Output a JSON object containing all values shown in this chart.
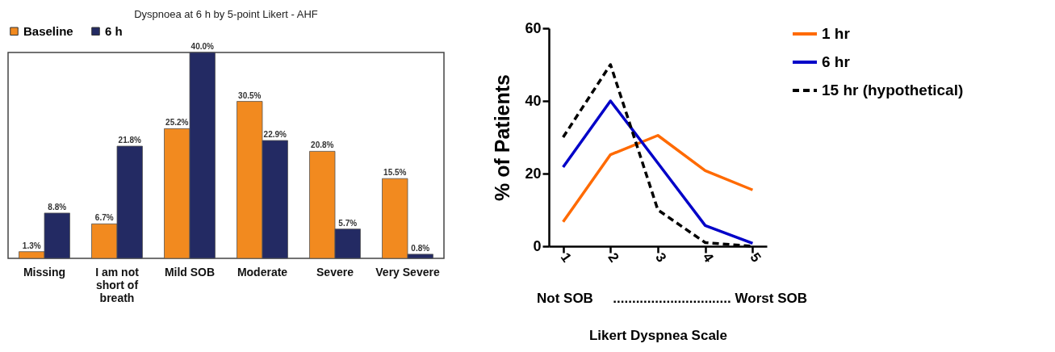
{
  "chart_data": [
    {
      "type": "bar",
      "title": "Dyspnoea at 6 h by 5-point Likert - AHF",
      "categories": [
        "Missing",
        "I am not short of breath",
        "Mild SOB",
        "Moderate",
        "Severe",
        "Very Severe"
      ],
      "series": [
        {
          "name": "Baseline",
          "color": "#f28a1f",
          "values": [
            1.3,
            6.7,
            25.2,
            30.5,
            20.8,
            15.5
          ],
          "value_labels": [
            "1.3%",
            "6.7%",
            "25.2%",
            "30.5%",
            "20.8%",
            "15.5%"
          ]
        },
        {
          "name": "6 h",
          "color": "#232a63",
          "values": [
            8.8,
            21.8,
            40.0,
            22.9,
            5.7,
            0.8
          ],
          "value_labels": [
            "8.8%",
            "21.8%",
            "40.0%",
            "22.9%",
            "5.7%",
            "0.8%"
          ]
        }
      ],
      "legend": "top",
      "grid": false
    },
    {
      "type": "line",
      "categories": [
        "1",
        "2",
        "3",
        "4",
        "5"
      ],
      "xlabel": "Likert Dyspnea Scale",
      "ylabel": "% of Patients",
      "ylim": [
        0,
        60
      ],
      "yticks": [
        0,
        20,
        40,
        60
      ],
      "series": [
        {
          "name": "1 hr",
          "color": "#ff6a00",
          "values": [
            6.7,
            25.2,
            30.5,
            20.8,
            15.5
          ]
        },
        {
          "name": "6 hr",
          "color": "#0000c8",
          "values": [
            21.8,
            40.0,
            22.9,
            5.7,
            0.8
          ]
        },
        {
          "name": "15 hr (hypothetical)",
          "color": "#000000",
          "line_style": "dashed",
          "values": [
            30,
            50,
            10,
            1,
            0
          ]
        }
      ],
      "annotations": [
        "Not SOB",
        "...............................",
        "Worst SOB"
      ],
      "legend": "top right",
      "grid": false,
      "marker": "none"
    }
  ]
}
